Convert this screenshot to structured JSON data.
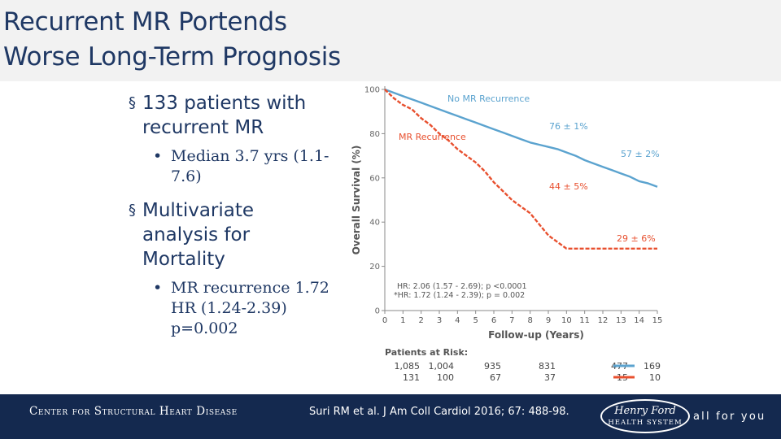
{
  "slide": {
    "title_lines": [
      "Recurrent MR Portends",
      "Worse Long-Term Prognosis"
    ],
    "bullets": [
      {
        "marker": "§",
        "text": "133 patients with recurrent MR",
        "sub": [
          {
            "marker": "•",
            "text": "Median 3.7 yrs (1.1-7.6)"
          }
        ]
      },
      {
        "marker": "§",
        "text": "Multivariate analysis for Mortality",
        "sub": [
          {
            "marker": "•",
            "text": "MR recurrence 1.72 HR (1.24-2.39) p=0.002"
          }
        ]
      }
    ]
  },
  "chart_data": {
    "type": "line",
    "xlabel": "Follow-up (Years)",
    "ylabel": "Overall Survival (%)",
    "xlim": [
      0,
      15
    ],
    "ylim": [
      0,
      100
    ],
    "x_ticks": [
      "0",
      "1",
      "2",
      "3",
      "4",
      "5",
      "6",
      "7",
      "8",
      "9",
      "10",
      "11",
      "12",
      "13",
      "14",
      "15"
    ],
    "y_ticks": [
      "0",
      "20",
      "40",
      "60",
      "80",
      "100"
    ],
    "grid": false,
    "series": [
      {
        "name": "No MR Recurrence",
        "color": "#5ba3cf",
        "style": "solid",
        "x": [
          0,
          0.5,
          1,
          1.5,
          2,
          2.5,
          3,
          3.5,
          4,
          4.5,
          5,
          5.5,
          6,
          6.5,
          7,
          7.5,
          8,
          8.5,
          9,
          9.5,
          10,
          10.5,
          11,
          11.5,
          12,
          12.5,
          13,
          13.5,
          14,
          14.5,
          15
        ],
        "y": [
          100,
          98.5,
          97,
          95.5,
          94,
          92.5,
          91,
          89.5,
          88,
          86.5,
          85,
          83.5,
          82,
          80.5,
          79,
          77.5,
          76,
          75,
          74,
          73,
          71.5,
          70,
          68,
          66.5,
          65,
          63.5,
          62,
          60.5,
          58.5,
          57.5,
          56
        ]
      },
      {
        "name": "MR Recurrence",
        "color": "#e8502f",
        "style": "dashed",
        "x": [
          0,
          0.5,
          1,
          1.5,
          2,
          2.5,
          3,
          3.5,
          4,
          4.5,
          5,
          5.5,
          6,
          6.5,
          7,
          7.5,
          8,
          8.5,
          9,
          9.5,
          10,
          10.5,
          11,
          11.5,
          12,
          12.5,
          13,
          13.5,
          14,
          14.5,
          15
        ],
        "y": [
          100,
          96,
          93,
          91,
          87,
          84,
          80,
          77,
          73,
          70,
          67,
          63,
          58,
          54,
          50,
          47,
          44,
          39,
          34,
          31,
          28,
          28,
          28,
          28,
          28,
          28,
          28,
          28,
          28,
          28,
          28
        ]
      }
    ],
    "annotations": {
      "series_labels": [
        "No MR Recurrence",
        "MR Recurrence"
      ],
      "blue_values": [
        "76 ± 1%",
        "57 ± 2%"
      ],
      "orange_values": [
        "44 ± 5%",
        "29 ± 6%"
      ],
      "hr_lines": [
        "HR: 2.06 (1.57 - 2.69); p <0.0001",
        "*HR: 1.72 (1.24 - 2.39); p = 0.002"
      ]
    },
    "risk_table": {
      "title": "Patients at Risk:",
      "rows": [
        {
          "color": "#5ba3cf",
          "values": [
            "1,085",
            "1,004",
            "935",
            "831",
            "477",
            "169"
          ]
        },
        {
          "color": "#e8502f",
          "values": [
            "131",
            "100",
            "67",
            "37",
            "15",
            "10"
          ]
        }
      ]
    }
  },
  "footer": {
    "center_name": "Center for Structural Heart Disease",
    "citation": "Suri RM et al. J Am Coll Cardiol 2016; 67: 488-98.",
    "logo_top": "Henry Ford",
    "logo_bottom": "HEALTH SYSTEM",
    "tagline": "all for you"
  },
  "colors": {
    "title": "#1f3864",
    "footer_bg": "#14294f",
    "axis": "#8a8a8a"
  }
}
